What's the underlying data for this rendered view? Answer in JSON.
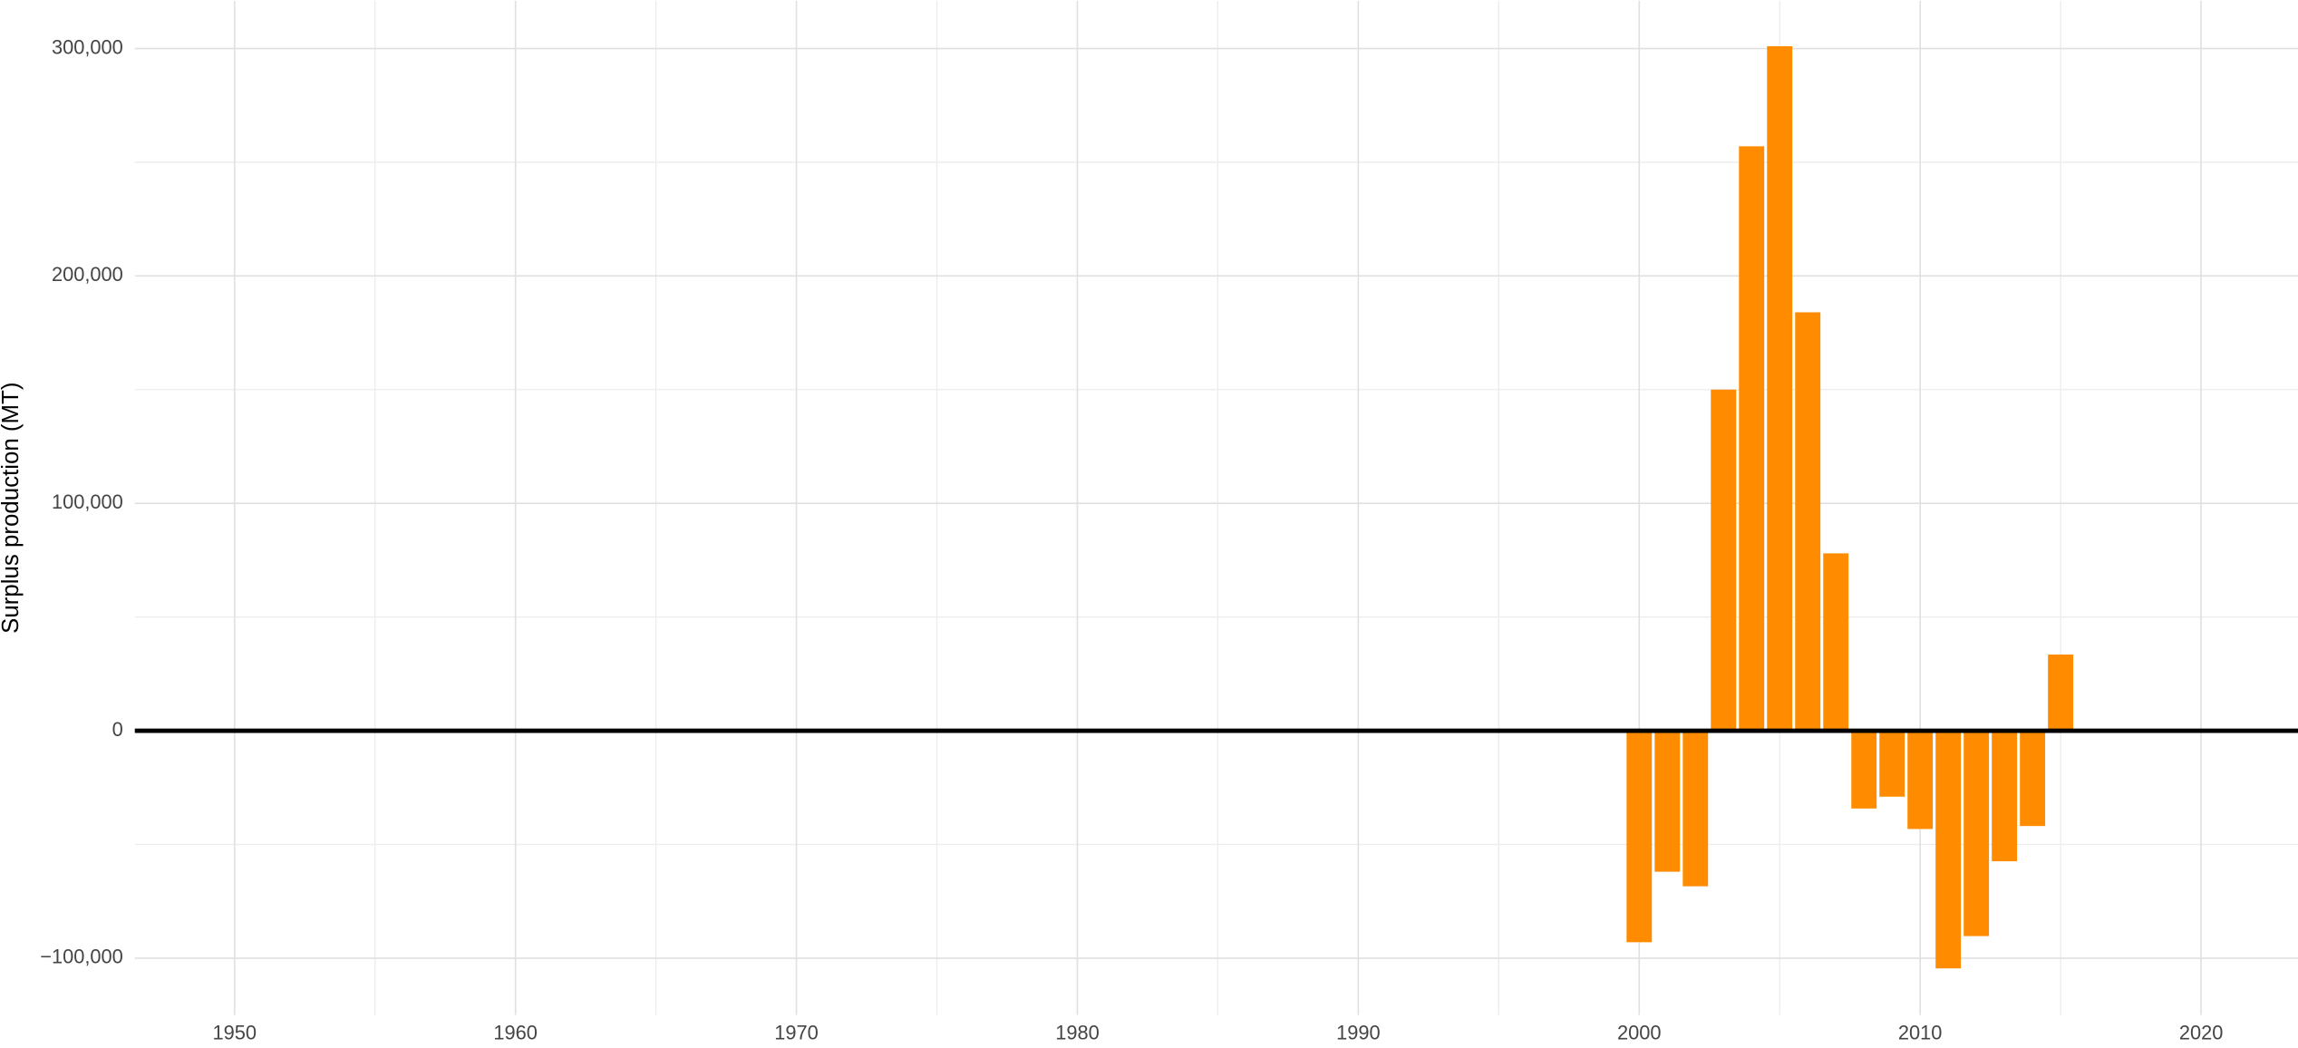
{
  "chart_data": {
    "type": "bar",
    "y_label": "Surplus production (MT)",
    "x": [
      2000,
      2001,
      2002,
      2003,
      2004,
      2005,
      2006,
      2007,
      2008,
      2009,
      2010,
      2011,
      2012,
      2013,
      2014,
      2015
    ],
    "values": [
      -93000,
      -62000,
      -68400,
      150000,
      257000,
      301000,
      184000,
      78000,
      -34200,
      -29000,
      -43200,
      -104500,
      -90300,
      -57400,
      -41900,
      33500
    ],
    "color": "#ff8c00",
    "xlim": [
      1946.45,
      2023.45
    ],
    "xticks": [
      1950,
      1960,
      1970,
      1980,
      1990,
      2000,
      2010,
      2020
    ],
    "x_minor_ticks": [
      1955,
      1965,
      1975,
      1985,
      1995,
      2005,
      2015
    ],
    "ylim": [
      -125000,
      321000
    ],
    "yticks": [
      {
        "value": -100000,
        "label": "−100,000"
      },
      0,
      {
        "value": 100000,
        "label": "100,000"
      },
      {
        "value": 200000,
        "label": "200,000"
      },
      {
        "value": 300000,
        "label": "300,000"
      }
    ],
    "y_minor_ticks": [
      -50000,
      50000,
      150000,
      250000
    ],
    "grid": true
  }
}
